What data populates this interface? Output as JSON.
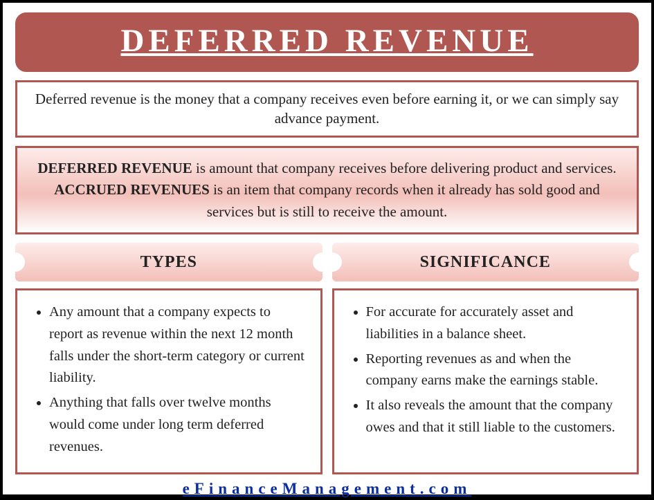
{
  "colors": {
    "primary": "#b15752",
    "link": "#0a2ea0",
    "grad_light": "#fdecea",
    "grad_dark": "#f3bfb9",
    "text": "#222222",
    "bg": "#ffffff"
  },
  "title": "DEFERRED REVENUE",
  "intro": "Deferred revenue is the money that a company receives even before earning it, or we can simply say advance payment.",
  "definition": {
    "term1": "DEFERRED REVENUE",
    "text1": " is amount that company receives before delivering product and services. ",
    "term2": "ACCRUED REVENUES",
    "text2": " is an item that company records when it already has sold good and services but is still to receive the amount."
  },
  "columns": {
    "left": {
      "heading": "TYPES",
      "items": [
        "Any amount that a company expects to report as revenue within the next 12 month falls under the short-term category or current liability.",
        "Anything that falls over twelve months would come under long term deferred revenues."
      ]
    },
    "right": {
      "heading": "SIGNIFICANCE",
      "items": [
        "For accurate for accurately asset and liabilities in a balance sheet.",
        "Reporting revenues as and when the company earns make the earnings stable.",
        "It also reveals the amount that the company owes and that it still liable to the customers."
      ]
    }
  },
  "footer_link": "eFinanceManagement.com"
}
